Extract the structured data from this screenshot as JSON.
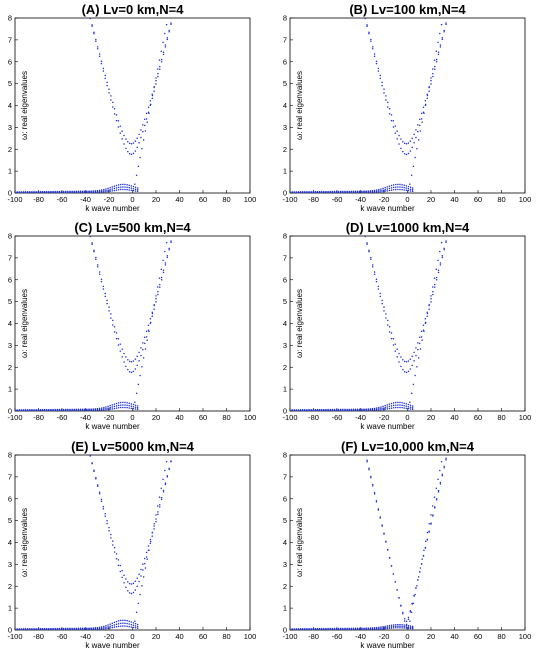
{
  "chart_data": [
    {
      "type": "scatter",
      "title": "(A) Lv=0 km,N=4",
      "xlabel": "k wave number",
      "ylabel": "ω: real eigenvalues",
      "xlim": [
        -100,
        100
      ],
      "ylim": [
        0,
        8
      ],
      "xticks": [
        "-100",
        "-80",
        "-60",
        "-40",
        "-20",
        "0",
        "20",
        "40",
        "60",
        "80",
        "100"
      ],
      "yticks": [
        "0",
        "1",
        "2",
        "3",
        "4",
        "5",
        "6",
        "7",
        "8"
      ],
      "color": "#1f2fd6",
      "params": {
        "min_upper": 2.25,
        "min_lower": 1.75,
        "bump": 0.3,
        "slope": 0.22
      }
    },
    {
      "type": "scatter",
      "title": "(B) Lv=100 km,N=4",
      "xlabel": "k wave number",
      "ylabel": "ω: real eigenvalues",
      "xlim": [
        -100,
        100
      ],
      "ylim": [
        0,
        8
      ],
      "xticks": [
        "-100",
        "-80",
        "-60",
        "-40",
        "-20",
        "0",
        "20",
        "40",
        "60",
        "80",
        "100"
      ],
      "yticks": [
        "0",
        "1",
        "2",
        "3",
        "4",
        "5",
        "6",
        "7",
        "8"
      ],
      "color": "#1f2fd6",
      "params": {
        "min_upper": 2.25,
        "min_lower": 1.75,
        "bump": 0.3,
        "slope": 0.22
      }
    },
    {
      "type": "scatter",
      "title": "(C) Lv=500 km,N=4",
      "xlabel": "k wave number",
      "ylabel": "ω: real eigenvalues",
      "xlim": [
        -100,
        100
      ],
      "ylim": [
        0,
        8
      ],
      "xticks": [
        "-100",
        "-80",
        "-60",
        "-40",
        "-20",
        "0",
        "20",
        "40",
        "60",
        "80",
        "100"
      ],
      "yticks": [
        "0",
        "1",
        "2",
        "3",
        "4",
        "5",
        "6",
        "7",
        "8"
      ],
      "color": "#1f2fd6",
      "params": {
        "min_upper": 2.25,
        "min_lower": 1.75,
        "bump": 0.3,
        "slope": 0.22
      }
    },
    {
      "type": "scatter",
      "title": "(D) Lv=1000 km,N=4",
      "xlabel": "k wave number",
      "ylabel": "ω: real eigenvalues",
      "xlim": [
        -100,
        100
      ],
      "ylim": [
        0,
        8
      ],
      "xticks": [
        "-100",
        "-80",
        "-60",
        "-40",
        "-20",
        "0",
        "20",
        "40",
        "60",
        "80",
        "100"
      ],
      "yticks": [
        "0",
        "1",
        "2",
        "3",
        "4",
        "5",
        "6",
        "7",
        "8"
      ],
      "color": "#1f2fd6",
      "params": {
        "min_upper": 2.25,
        "min_lower": 1.75,
        "bump": 0.3,
        "slope": 0.22
      }
    },
    {
      "type": "scatter",
      "title": "(E) Lv=5000 km,N=4",
      "xlabel": "k wave number",
      "ylabel": "ω: real eigenvalues",
      "xlim": [
        -100,
        100
      ],
      "ylim": [
        0,
        8
      ],
      "xticks": [
        "-100",
        "-80",
        "-60",
        "-40",
        "-20",
        "0",
        "20",
        "40",
        "60",
        "80",
        "100"
      ],
      "yticks": [
        "0",
        "1",
        "2",
        "3",
        "4",
        "5",
        "6",
        "7",
        "8"
      ],
      "color": "#1f2fd6",
      "params": {
        "min_upper": 2.1,
        "min_lower": 1.65,
        "bump": 0.35,
        "slope": 0.22
      }
    },
    {
      "type": "scatter",
      "title": "(F) Lv=10,000 km,N=4",
      "xlabel": "k wave number",
      "ylabel": "ω: real eigenvalues",
      "xlim": [
        -100,
        100
      ],
      "ylim": [
        0,
        8
      ],
      "xticks": [
        "-100",
        "-80",
        "-60",
        "-40",
        "-20",
        "0",
        "20",
        "40",
        "60",
        "80",
        "100"
      ],
      "yticks": [
        "0",
        "1",
        "2",
        "3",
        "4",
        "5",
        "6",
        "7",
        "8"
      ],
      "color": "#1f2fd6",
      "params": {
        "min_upper": 0.4,
        "min_lower": 0.25,
        "bump": 0.15,
        "slope": 0.23
      }
    }
  ]
}
